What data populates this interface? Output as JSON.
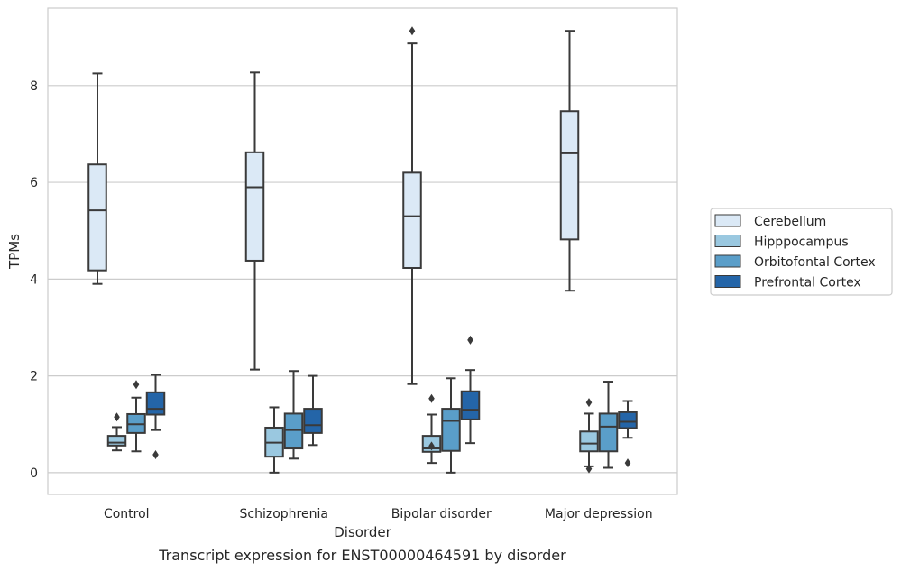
{
  "chart_data": {
    "type": "box",
    "caption": "Transcript expression for ENST00000464591 by disorder",
    "xlabel": "Disorder",
    "ylabel": "TPMs",
    "ylim": [
      -0.45,
      9.6
    ],
    "yticks": [
      0,
      2,
      4,
      6,
      8
    ],
    "grid": "horizontal",
    "legend_position": "right",
    "categories": [
      "Control",
      "Schizophrenia",
      "Bipolar disorder",
      "Major depression"
    ],
    "series": [
      {
        "name": "Cerebellum",
        "color": "#dbe9f6",
        "boxes": [
          {
            "whisker_low": 3.9,
            "q1": 4.18,
            "median": 5.42,
            "q3": 6.37,
            "whisker_high": 8.25,
            "outliers": []
          },
          {
            "whisker_low": 2.13,
            "q1": 4.38,
            "median": 5.9,
            "q3": 6.62,
            "whisker_high": 8.27,
            "outliers": []
          },
          {
            "whisker_low": 1.83,
            "q1": 4.23,
            "median": 5.3,
            "q3": 6.2,
            "whisker_high": 8.87,
            "outliers": [
              9.13
            ]
          },
          {
            "whisker_low": 3.76,
            "q1": 4.82,
            "median": 6.6,
            "q3": 7.47,
            "whisker_high": 9.13,
            "outliers": []
          }
        ]
      },
      {
        "name": "Hipppocampus",
        "color": "#9ac8e0",
        "boxes": [
          {
            "whisker_low": 0.46,
            "q1": 0.56,
            "median": 0.62,
            "q3": 0.76,
            "whisker_high": 0.94,
            "outliers": [
              1.15
            ]
          },
          {
            "whisker_low": 0.0,
            "q1": 0.33,
            "median": 0.62,
            "q3": 0.93,
            "whisker_high": 1.35,
            "outliers": []
          },
          {
            "whisker_low": 0.2,
            "q1": 0.43,
            "median": 0.5,
            "q3": 0.76,
            "whisker_high": 1.2,
            "outliers": [
              0.55,
              1.53
            ]
          },
          {
            "whisker_low": 0.13,
            "q1": 0.44,
            "median": 0.6,
            "q3": 0.85,
            "whisker_high": 1.22,
            "outliers": [
              0.08,
              1.45
            ]
          }
        ]
      },
      {
        "name": "Orbitofontal Cortex",
        "color": "#5a9ec9",
        "boxes": [
          {
            "whisker_low": 0.44,
            "q1": 0.82,
            "median": 1.0,
            "q3": 1.21,
            "whisker_high": 1.55,
            "outliers": [
              1.82
            ]
          },
          {
            "whisker_low": 0.29,
            "q1": 0.5,
            "median": 0.88,
            "q3": 1.22,
            "whisker_high": 2.1,
            "outliers": []
          },
          {
            "whisker_low": 0.0,
            "q1": 0.45,
            "median": 1.07,
            "q3": 1.32,
            "whisker_high": 1.95,
            "outliers": []
          },
          {
            "whisker_low": 0.1,
            "q1": 0.44,
            "median": 0.95,
            "q3": 1.22,
            "whisker_high": 1.88,
            "outliers": []
          }
        ]
      },
      {
        "name": "Prefrontal Cortex",
        "color": "#2465a8",
        "boxes": [
          {
            "whisker_low": 0.88,
            "q1": 1.2,
            "median": 1.32,
            "q3": 1.66,
            "whisker_high": 2.02,
            "outliers": [
              0.37
            ]
          },
          {
            "whisker_low": 0.57,
            "q1": 0.82,
            "median": 0.98,
            "q3": 1.32,
            "whisker_high": 2.0,
            "outliers": []
          },
          {
            "whisker_low": 0.61,
            "q1": 1.1,
            "median": 1.3,
            "q3": 1.68,
            "whisker_high": 2.12,
            "outliers": [
              2.74
            ]
          },
          {
            "whisker_low": 0.72,
            "q1": 0.92,
            "median": 1.05,
            "q3": 1.25,
            "whisker_high": 1.48,
            "outliers": [
              0.2
            ]
          }
        ]
      }
    ]
  }
}
